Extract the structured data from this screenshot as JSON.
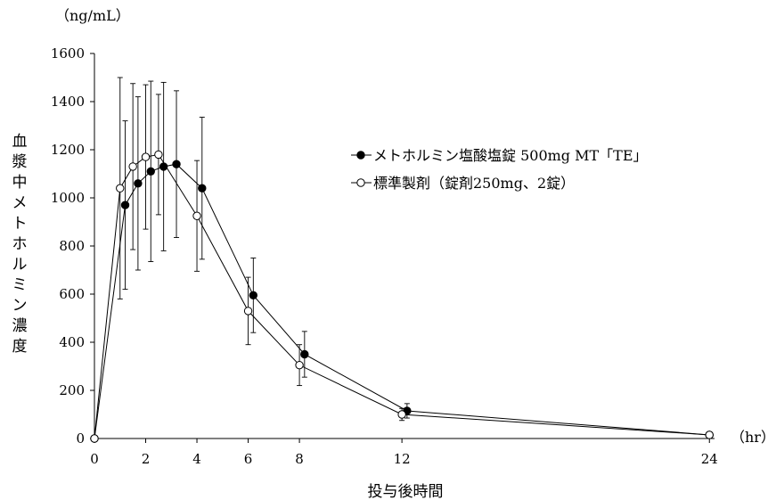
{
  "chart_data": {
    "type": "line",
    "unit_label": "（ng/mL）",
    "x_unit_label": "（hr）",
    "xlabel": "投与後時間",
    "ylabel": "血漿中メトホルミン濃度",
    "xlim": [
      0,
      24.2
    ],
    "ylim": [
      0,
      1600
    ],
    "x_ticks": [
      0,
      2,
      4,
      6,
      8,
      12,
      24
    ],
    "y_ticks": [
      0,
      200,
      400,
      600,
      800,
      1000,
      1200,
      1400,
      1600
    ],
    "legend_position": "top-right",
    "series": [
      {
        "name": "メトホルミン塩酸塩錠 500mg MT「TE」",
        "marker": "filled-circle",
        "color": "#000000",
        "points": [
          {
            "x": 0,
            "y": 0,
            "err": 0
          },
          {
            "x": 1.2,
            "y": 970,
            "err": 350
          },
          {
            "x": 1.7,
            "y": 1060,
            "err": 360
          },
          {
            "x": 2.2,
            "y": 1110,
            "err": 375
          },
          {
            "x": 2.7,
            "y": 1130,
            "err": 350
          },
          {
            "x": 3.2,
            "y": 1140,
            "err": 305
          },
          {
            "x": 4.2,
            "y": 1040,
            "err": 295
          },
          {
            "x": 6.2,
            "y": 595,
            "err": 155
          },
          {
            "x": 8.2,
            "y": 350,
            "err": 95
          },
          {
            "x": 12.2,
            "y": 115,
            "err": 30
          },
          {
            "x": 24,
            "y": 15,
            "err": 5
          }
        ]
      },
      {
        "name": "標準製剤（錠剤250mg、2錠）",
        "marker": "open-circle",
        "color": "#000000",
        "points": [
          {
            "x": 0,
            "y": 0,
            "err": 0
          },
          {
            "x": 1,
            "y": 1040,
            "err": 460
          },
          {
            "x": 1.5,
            "y": 1130,
            "err": 345
          },
          {
            "x": 2,
            "y": 1170,
            "err": 300
          },
          {
            "x": 2.5,
            "y": 1180,
            "err": 250
          },
          {
            "x": 4,
            "y": 925,
            "err": 230
          },
          {
            "x": 6,
            "y": 530,
            "err": 140
          },
          {
            "x": 8,
            "y": 305,
            "err": 85
          },
          {
            "x": 12,
            "y": 100,
            "err": 25
          },
          {
            "x": 24,
            "y": 15,
            "err": 5
          }
        ]
      }
    ]
  }
}
